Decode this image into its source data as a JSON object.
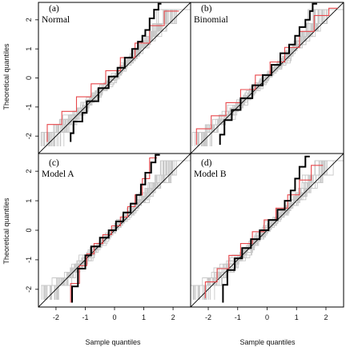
{
  "figure": {
    "x_axis_title": "Sample quantiles",
    "y_axis_title": "Theoretical quantiles"
  },
  "colors": {
    "envelope": "#c8c8c8",
    "observed": "#000000",
    "reference": "#e8474b",
    "diagonal": "#000000"
  },
  "chart_data": [
    {
      "type": "line",
      "panel_letter": "(a)",
      "panel_name": "Normal",
      "xlim": [
        -2.6,
        2.6
      ],
      "ylim": [
        -2.6,
        2.6
      ],
      "xticks": [
        -2,
        -1,
        0,
        1,
        2
      ],
      "yticks": [
        -2,
        -1,
        0,
        1,
        2
      ],
      "diagonal": true,
      "envelope_spread": 0.26,
      "envelope_count": 26,
      "observed": {
        "name": "",
        "x": [
          -1.5,
          -1.4,
          -1.1,
          -0.95,
          -0.55,
          -0.2,
          0.1,
          0.35,
          0.6,
          0.8,
          0.95,
          1.05,
          1.2,
          1.35,
          1.5,
          1.6
        ],
        "y": [
          -2.2,
          -1.9,
          -1.5,
          -1.2,
          -0.8,
          -0.35,
          0.05,
          0.35,
          0.7,
          1.0,
          1.25,
          1.45,
          1.65,
          2.05,
          2.35,
          2.55
        ]
      },
      "reference": {
        "name": "",
        "x": [
          -2.3,
          -1.8,
          -1.3,
          -0.8,
          -0.3,
          0.2,
          0.7,
          1.2,
          1.7,
          2.2
        ],
        "y": [
          -2.2,
          -1.6,
          -1.15,
          -0.65,
          -0.2,
          0.25,
          0.7,
          1.2,
          1.8,
          2.3
        ]
      }
    },
    {
      "type": "line",
      "panel_letter": "(b)",
      "panel_name": "Binomial",
      "xlim": [
        -2.6,
        2.6
      ],
      "ylim": [
        -2.6,
        2.6
      ],
      "xticks": [
        -2,
        -1,
        0,
        1,
        2
      ],
      "yticks": [
        -2,
        -1,
        0,
        1,
        2
      ],
      "diagonal": true,
      "envelope_spread": 0.24,
      "envelope_count": 26,
      "observed": {
        "name": "",
        "x": [
          -1.6,
          -1.45,
          -1.2,
          -0.9,
          -0.5,
          -0.15,
          0.15,
          0.45,
          0.75,
          0.95,
          1.1,
          1.3,
          1.45,
          1.55,
          1.7
        ],
        "y": [
          -2.3,
          -1.95,
          -1.45,
          -1.1,
          -0.7,
          -0.25,
          0.1,
          0.45,
          0.85,
          1.15,
          1.45,
          1.75,
          2.0,
          2.3,
          2.55
        ]
      },
      "reference": {
        "name": "",
        "x": [
          -2.4,
          -1.9,
          -1.4,
          -0.9,
          -0.4,
          0.1,
          0.6,
          1.1,
          1.6,
          2.1,
          2.4
        ],
        "y": [
          -2.3,
          -1.75,
          -1.3,
          -0.85,
          -0.4,
          0.1,
          0.55,
          1.05,
          1.6,
          2.15,
          2.4
        ]
      }
    },
    {
      "type": "line",
      "panel_letter": "(c)",
      "panel_name": "Model A",
      "xlim": [
        -2.6,
        2.6
      ],
      "ylim": [
        -2.6,
        2.6
      ],
      "xticks": [
        -2,
        -1,
        0,
        1,
        2
      ],
      "yticks": [
        -2,
        -1,
        0,
        1,
        2
      ],
      "diagonal": true,
      "envelope_spread": 0.2,
      "envelope_count": 26,
      "observed": {
        "name": "",
        "x": [
          -1.45,
          -1.25,
          -1.0,
          -0.8,
          -0.5,
          -0.2,
          0.05,
          0.3,
          0.55,
          0.75,
          0.9,
          1.05,
          1.25,
          1.4,
          1.55
        ],
        "y": [
          -2.45,
          -1.9,
          -1.3,
          -0.85,
          -0.55,
          -0.25,
          0.0,
          0.3,
          0.6,
          0.9,
          1.2,
          1.55,
          1.95,
          2.3,
          2.55
        ]
      },
      "reference": {
        "name": "",
        "x": [
          -1.5,
          -1.2,
          -0.95,
          -0.7,
          -0.4,
          -0.1,
          0.2,
          0.45,
          0.7,
          0.95,
          1.2,
          1.45
        ],
        "y": [
          -2.45,
          -1.8,
          -1.2,
          -0.8,
          -0.45,
          -0.15,
          0.15,
          0.45,
          0.8,
          1.2,
          1.75,
          2.45
        ]
      }
    },
    {
      "type": "line",
      "panel_letter": "(d)",
      "panel_name": "Model B",
      "xlim": [
        -2.6,
        2.6
      ],
      "ylim": [
        -2.6,
        2.6
      ],
      "xticks": [
        -2,
        -1,
        0,
        1,
        2
      ],
      "yticks": [
        -2,
        -1,
        0,
        1,
        2
      ],
      "diagonal": true,
      "envelope_spread": 0.3,
      "envelope_count": 26,
      "observed": {
        "name": "",
        "x": [
          -1.5,
          -1.35,
          -1.1,
          -0.85,
          -0.55,
          -0.25,
          0.05,
          0.35,
          0.6,
          0.8,
          0.95,
          1.1,
          1.3,
          1.45
        ],
        "y": [
          -2.45,
          -1.85,
          -1.35,
          -0.95,
          -0.6,
          -0.3,
          0.0,
          0.35,
          0.7,
          1.0,
          1.35,
          1.75,
          2.15,
          2.5
        ]
      },
      "reference": {
        "name": "",
        "x": [
          -2.1,
          -1.7,
          -1.3,
          -0.9,
          -0.5,
          -0.1,
          0.3,
          0.7,
          1.1,
          1.5,
          1.9
        ],
        "y": [
          -2.3,
          -1.75,
          -1.3,
          -0.85,
          -0.45,
          -0.05,
          0.35,
          0.75,
          1.2,
          1.7,
          2.2
        ]
      }
    }
  ]
}
